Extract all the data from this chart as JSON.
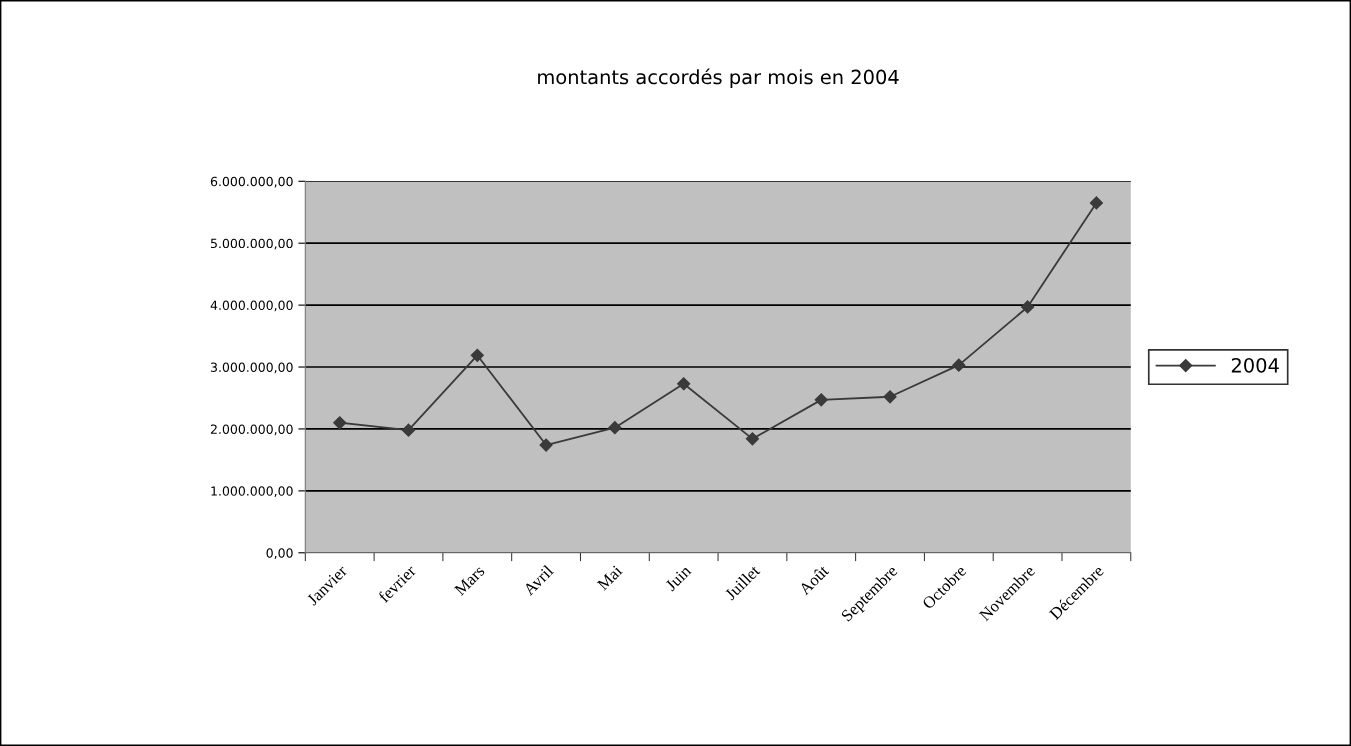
{
  "chart_data": {
    "type": "line",
    "title": "montants accordés par mois en 2004",
    "categories": [
      "Janvier",
      "fevrier",
      "Mars",
      "Avril",
      "Mai",
      "Juin",
      "Juillet",
      "Août",
      "Septembre",
      "Octobre",
      "Novembre",
      "Décembre"
    ],
    "series": [
      {
        "name": "2004",
        "color": "#3a3a3a",
        "values": [
          2100000,
          1980000,
          3190000,
          1740000,
          2020000,
          2730000,
          1840000,
          2470000,
          2520000,
          3030000,
          3970000,
          5650000
        ]
      }
    ],
    "ylim": [
      0,
      6000000
    ],
    "yticks": [
      {
        "value": 0,
        "label": "0,00"
      },
      {
        "value": 1000000,
        "label": "1.000.000,00"
      },
      {
        "value": 2000000,
        "label": "2.000.000,00"
      },
      {
        "value": 3000000,
        "label": "3.000.000,00"
      },
      {
        "value": 4000000,
        "label": "4.000.000,00"
      },
      {
        "value": 5000000,
        "label": "5.000.000,00"
      },
      {
        "value": 6000000,
        "label": "6.000.000,00"
      }
    ],
    "grid": "y",
    "legend": "right",
    "marker": "diamond",
    "line_style": "solid"
  }
}
